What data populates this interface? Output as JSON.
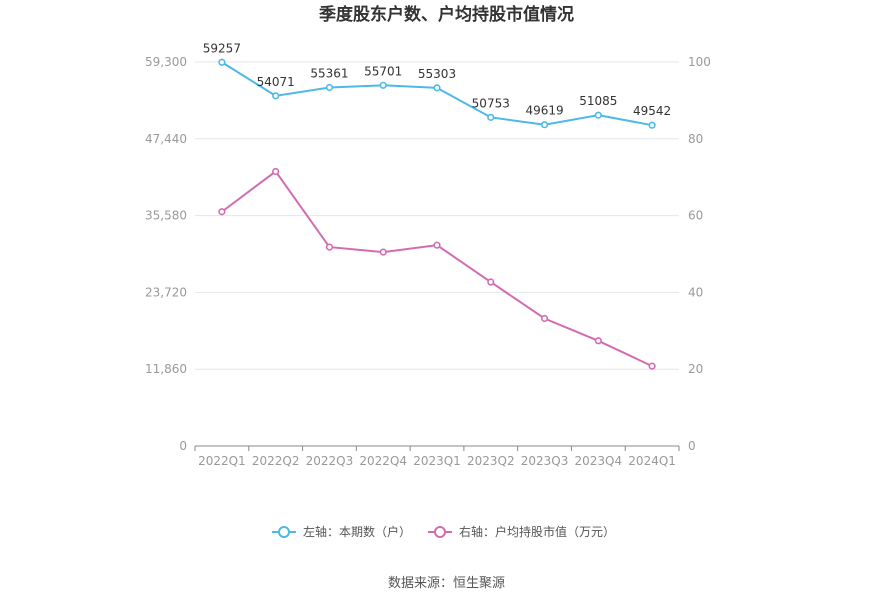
{
  "chart_data": {
    "type": "line",
    "title": "季度股东户数、户均持股市值情况",
    "categories": [
      "2022Q1",
      "2022Q2",
      "2022Q3",
      "2022Q4",
      "2023Q1",
      "2023Q2",
      "2023Q3",
      "2023Q4",
      "2024Q1"
    ],
    "left_axis": {
      "ylim": [
        0,
        59300
      ],
      "ticks": [
        "0",
        "11,860",
        "23,720",
        "35,580",
        "47,440",
        "59,300"
      ]
    },
    "right_axis": {
      "ylim": [
        0,
        100
      ],
      "ticks": [
        "0",
        "20",
        "40",
        "60",
        "80",
        "100"
      ]
    },
    "series": [
      {
        "name": "左轴：本期数（户）",
        "axis": "left",
        "color": "#4cb9ea",
        "values": [
          59257,
          54071,
          55361,
          55701,
          55303,
          50753,
          49619,
          51085,
          49542
        ],
        "labels": [
          "59257",
          "54071",
          "55361",
          "55701",
          "55303",
          "50753",
          "49619",
          "51085",
          "49542"
        ]
      },
      {
        "name": "右轴：户均持股市值（万元）",
        "axis": "right",
        "color": "#d36bb0",
        "values": [
          61.0,
          71.5,
          51.8,
          50.5,
          52.3,
          42.7,
          33.2,
          27.4,
          20.8
        ]
      }
    ],
    "grid": true,
    "legend_position": "bottom"
  },
  "source": "数据来源：恒生聚源"
}
